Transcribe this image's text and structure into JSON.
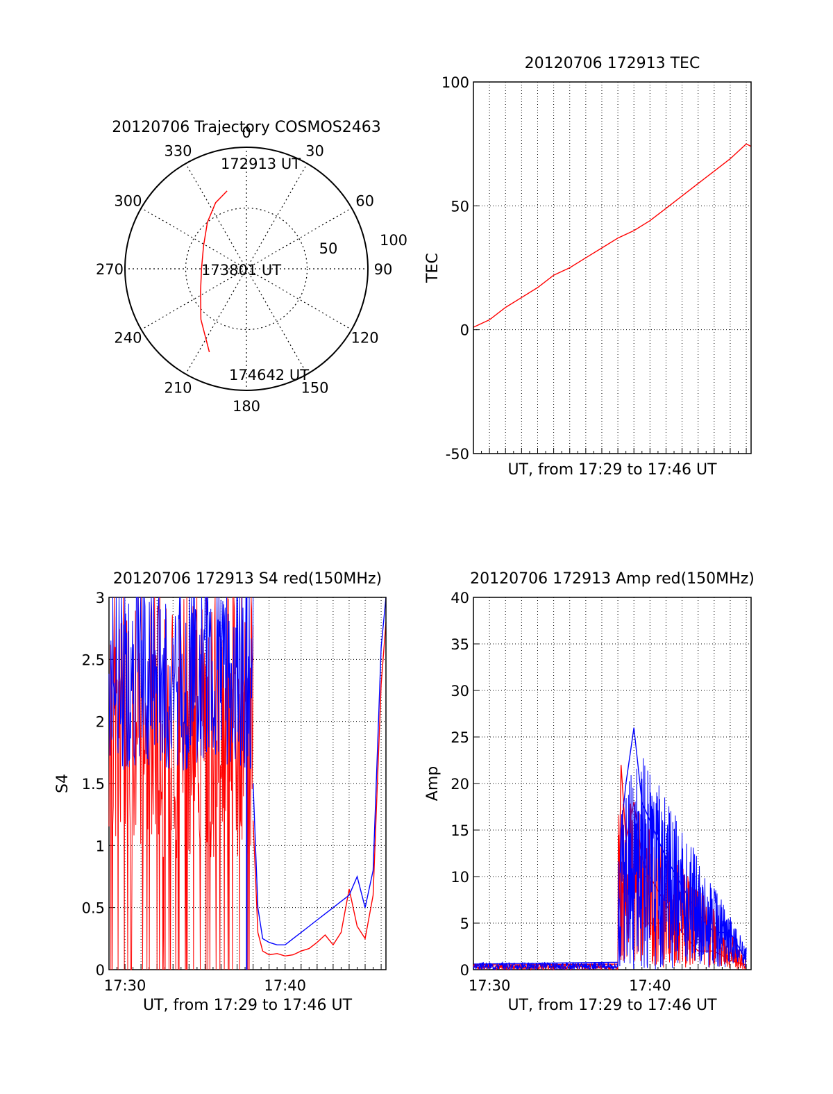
{
  "chart_data": [
    {
      "type": "polar",
      "title": "20120706 Trajectory COSMOS2463",
      "angle_labels": [
        "0",
        "30",
        "60",
        "90",
        "120",
        "150",
        "180",
        "210",
        "240",
        "270",
        "300",
        "330"
      ],
      "radial_labels": [
        "50",
        "100"
      ],
      "rlim": [
        0,
        100
      ],
      "grid": true,
      "colors": {
        "track": "#ff0000",
        "frame": "#000000"
      },
      "series": [
        {
          "points": [
            {
              "az": 346,
              "el": 34
            },
            {
              "az": 335,
              "el": 40
            },
            {
              "az": 320,
              "el": 50
            },
            {
              "az": 298,
              "el": 60
            },
            {
              "az": 270,
              "el": 63
            },
            {
              "az": 244,
              "el": 58
            },
            {
              "az": 222,
              "el": 44
            },
            {
              "az": 204,
              "el": 25
            }
          ]
        }
      ],
      "annotations": [
        "172913 UT",
        "173801 UT",
        "174642 UT"
      ]
    },
    {
      "type": "line",
      "title": "20120706 172913 TEC",
      "xlabel": "UT, from 17:29 to 17:46 UT",
      "ylabel": "TEC",
      "ylim": [
        -50,
        100
      ],
      "yticks": [
        "100",
        "50",
        "0",
        "-50"
      ],
      "xlim": [
        0,
        17.3
      ],
      "grid": true,
      "series": [
        {
          "color": "#ff0000",
          "x": [
            0,
            1,
            2,
            3,
            4,
            5,
            6,
            7,
            8,
            9,
            10,
            11,
            12,
            13,
            14,
            15,
            16,
            16.5,
            17,
            17.3
          ],
          "y": [
            1,
            4,
            9,
            13,
            17,
            22,
            25,
            29,
            33,
            37,
            40,
            44,
            49,
            54,
            59,
            64,
            69,
            72,
            75,
            74
          ]
        }
      ]
    },
    {
      "type": "line",
      "title": "20120706 172913 S4 red(150MHz)",
      "xlabel": "UT, from 17:29 to 17:46 UT",
      "ylabel": "S4",
      "ylim": [
        0,
        3
      ],
      "yticks": [
        "3",
        "2.5",
        "2",
        "1.5",
        "1",
        "0.5",
        "0"
      ],
      "xtick_labels": [
        "17:30",
        "17:40"
      ],
      "xlim": [
        0,
        17.3
      ],
      "grid": true,
      "series": [
        {
          "color": "#ff0000",
          "x": [
            9,
            9.3,
            9.6,
            10,
            10.5,
            11,
            11.5,
            12,
            12.5,
            13,
            13.5,
            14,
            14.5,
            15,
            15.5,
            16,
            16.5,
            17,
            17.3
          ],
          "y": [
            1.2,
            0.3,
            0.15,
            0.12,
            0.13,
            0.11,
            0.12,
            0.15,
            0.17,
            0.22,
            0.28,
            0.2,
            0.3,
            0.65,
            0.35,
            0.25,
            0.6,
            2.3,
            2.8
          ]
        },
        {
          "color": "#0000ff",
          "x": [
            9,
            9.3,
            9.6,
            10,
            10.5,
            11,
            11.5,
            12,
            12.5,
            13,
            13.5,
            14,
            14.5,
            15,
            15.5,
            16,
            16.5,
            17,
            17.3
          ],
          "y": [
            1.5,
            0.5,
            0.25,
            0.22,
            0.2,
            0.2,
            0.25,
            0.3,
            0.35,
            0.4,
            0.45,
            0.5,
            0.55,
            0.6,
            0.75,
            0.5,
            0.8,
            2.6,
            3.0
          ]
        }
      ]
    },
    {
      "type": "line",
      "title": "20120706 172913 Amp red(150MHz)",
      "xlabel": "UT, from 17:29 to 17:46 UT",
      "ylabel": "Amp",
      "ylim": [
        0,
        40
      ],
      "yticks": [
        "40",
        "35",
        "30",
        "25",
        "20",
        "15",
        "10",
        "5",
        "0"
      ],
      "xtick_labels": [
        "17:30",
        "17:40"
      ],
      "xlim": [
        0,
        17.3
      ],
      "grid": true,
      "series": [
        {
          "color": "#ff0000",
          "x": [
            0,
            9,
            9.2,
            9.5,
            10,
            10.5,
            11,
            12,
            13,
            14,
            15,
            16,
            17
          ],
          "y": [
            0.5,
            0.6,
            22,
            14,
            18,
            12,
            10,
            7,
            4,
            2,
            2,
            1,
            0.5
          ]
        },
        {
          "color": "#0000ff",
          "x": [
            0,
            9,
            9.2,
            9.5,
            10,
            10.5,
            11,
            12,
            13,
            14,
            15,
            16,
            17
          ],
          "y": [
            0.6,
            0.8,
            15,
            20,
            26,
            18,
            16,
            12,
            9,
            6,
            4,
            4,
            1
          ]
        }
      ]
    }
  ]
}
